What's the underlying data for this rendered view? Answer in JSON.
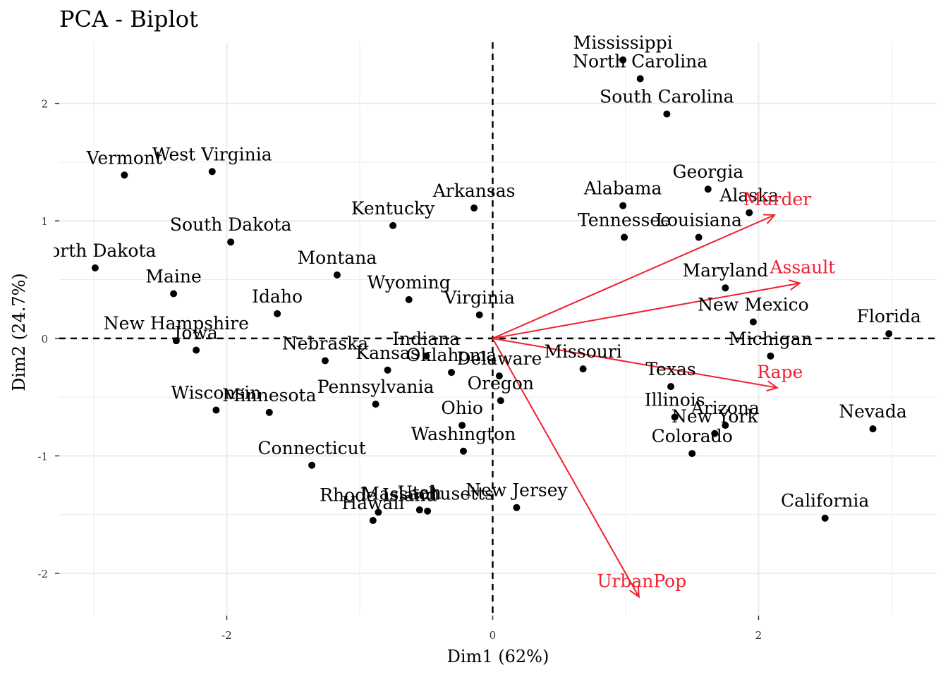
{
  "chart_data": {
    "type": "scatter",
    "title": "PCA - Biplot",
    "xlabel": "Dim1 (62%)",
    "ylabel": "Dim2 (24.7%)",
    "xlim": [
      -3.26,
      3.34
    ],
    "ylim": [
      -2.36,
      2.52
    ],
    "x_ticks": [
      -2,
      0,
      2
    ],
    "y_ticks": [
      -2,
      -1,
      0,
      1,
      2
    ],
    "grid": true,
    "reference_lines": {
      "x": 0,
      "y": 0,
      "style": "dashed"
    },
    "point_color": "#000000",
    "arrow_color": "#F0202F",
    "points": [
      {
        "label": "Alabama",
        "x": 0.98,
        "y": 1.13
      },
      {
        "label": "Alaska",
        "x": 1.93,
        "y": 1.07
      },
      {
        "label": "Arizona",
        "x": 1.75,
        "y": -0.74
      },
      {
        "label": "Arkansas",
        "x": -0.14,
        "y": 1.11
      },
      {
        "label": "California",
        "x": 2.5,
        "y": -1.53
      },
      {
        "label": "Colorado",
        "x": 1.5,
        "y": -0.98
      },
      {
        "label": "Connecticut",
        "x": -1.36,
        "y": -1.08
      },
      {
        "label": "Delaware",
        "x": 0.05,
        "y": -0.32
      },
      {
        "label": "Florida",
        "x": 2.98,
        "y": 0.04
      },
      {
        "label": "Georgia",
        "x": 1.62,
        "y": 1.27
      },
      {
        "label": "Hawaii",
        "x": -0.9,
        "y": -1.55
      },
      {
        "label": "Idaho",
        "x": -1.62,
        "y": 0.21
      },
      {
        "label": "Illinois",
        "x": 1.37,
        "y": -0.67
      },
      {
        "label": "Indiana",
        "x": -0.5,
        "y": -0.15
      },
      {
        "label": "Iowa",
        "x": -2.23,
        "y": -0.1
      },
      {
        "label": "Kansas",
        "x": -0.79,
        "y": -0.27
      },
      {
        "label": "Kentucky",
        "x": -0.75,
        "y": 0.96
      },
      {
        "label": "Louisiana",
        "x": 1.55,
        "y": 0.86
      },
      {
        "label": "Maine",
        "x": -2.4,
        "y": 0.38
      },
      {
        "label": "Maryland",
        "x": 1.75,
        "y": 0.43
      },
      {
        "label": "Massachusetts",
        "x": -0.49,
        "y": -1.47
      },
      {
        "label": "Michigan",
        "x": 2.09,
        "y": -0.15
      },
      {
        "label": "Minnesota",
        "x": -1.68,
        "y": -0.63
      },
      {
        "label": "Mississippi",
        "x": 0.98,
        "y": 2.37
      },
      {
        "label": "Missouri",
        "x": 0.68,
        "y": -0.26
      },
      {
        "label": "Montana",
        "x": -1.17,
        "y": 0.54
      },
      {
        "label": "Nebraska",
        "x": -1.26,
        "y": -0.19
      },
      {
        "label": "Nevada",
        "x": 2.86,
        "y": -0.77
      },
      {
        "label": "New Hampshire",
        "x": -2.38,
        "y": -0.02
      },
      {
        "label": "New Jersey",
        "x": 0.18,
        "y": -1.44
      },
      {
        "label": "New Mexico",
        "x": 1.96,
        "y": 0.14
      },
      {
        "label": "New York",
        "x": 1.67,
        "y": -0.81
      },
      {
        "label": "North Carolina",
        "x": 1.11,
        "y": 2.21
      },
      {
        "label": "North Dakota",
        "x": -2.99,
        "y": 0.6
      },
      {
        "label": "Ohio",
        "x": -0.23,
        "y": -0.74
      },
      {
        "label": "Oklahoma",
        "x": -0.31,
        "y": -0.29
      },
      {
        "label": "Oregon",
        "x": 0.06,
        "y": -0.53
      },
      {
        "label": "Pennsylvania",
        "x": -0.88,
        "y": -0.56
      },
      {
        "label": "Rhode Island",
        "x": -0.86,
        "y": -1.48
      },
      {
        "label": "South Carolina",
        "x": 1.31,
        "y": 1.91
      },
      {
        "label": "South Dakota",
        "x": -1.97,
        "y": 0.82
      },
      {
        "label": "Tennessee",
        "x": 0.99,
        "y": 0.86
      },
      {
        "label": "Texas",
        "x": 1.34,
        "y": -0.41
      },
      {
        "label": "Utah",
        "x": -0.55,
        "y": -1.46
      },
      {
        "label": "Vermont",
        "x": -2.77,
        "y": 1.39
      },
      {
        "label": "Virginia",
        "x": -0.1,
        "y": 0.2
      },
      {
        "label": "Washington",
        "x": -0.22,
        "y": -0.96
      },
      {
        "label": "West Virginia",
        "x": -2.11,
        "y": 1.42
      },
      {
        "label": "Wisconsin",
        "x": -2.08,
        "y": -0.61
      },
      {
        "label": "Wyoming",
        "x": -0.63,
        "y": 0.33
      }
    ],
    "variables": [
      {
        "label": "Murder",
        "x": 2.12,
        "y": 1.05
      },
      {
        "label": "Assault",
        "x": 2.31,
        "y": 0.47
      },
      {
        "label": "UrbanPop",
        "x": 1.1,
        "y": -2.2
      },
      {
        "label": "Rape",
        "x": 2.14,
        "y": -0.42
      }
    ]
  }
}
